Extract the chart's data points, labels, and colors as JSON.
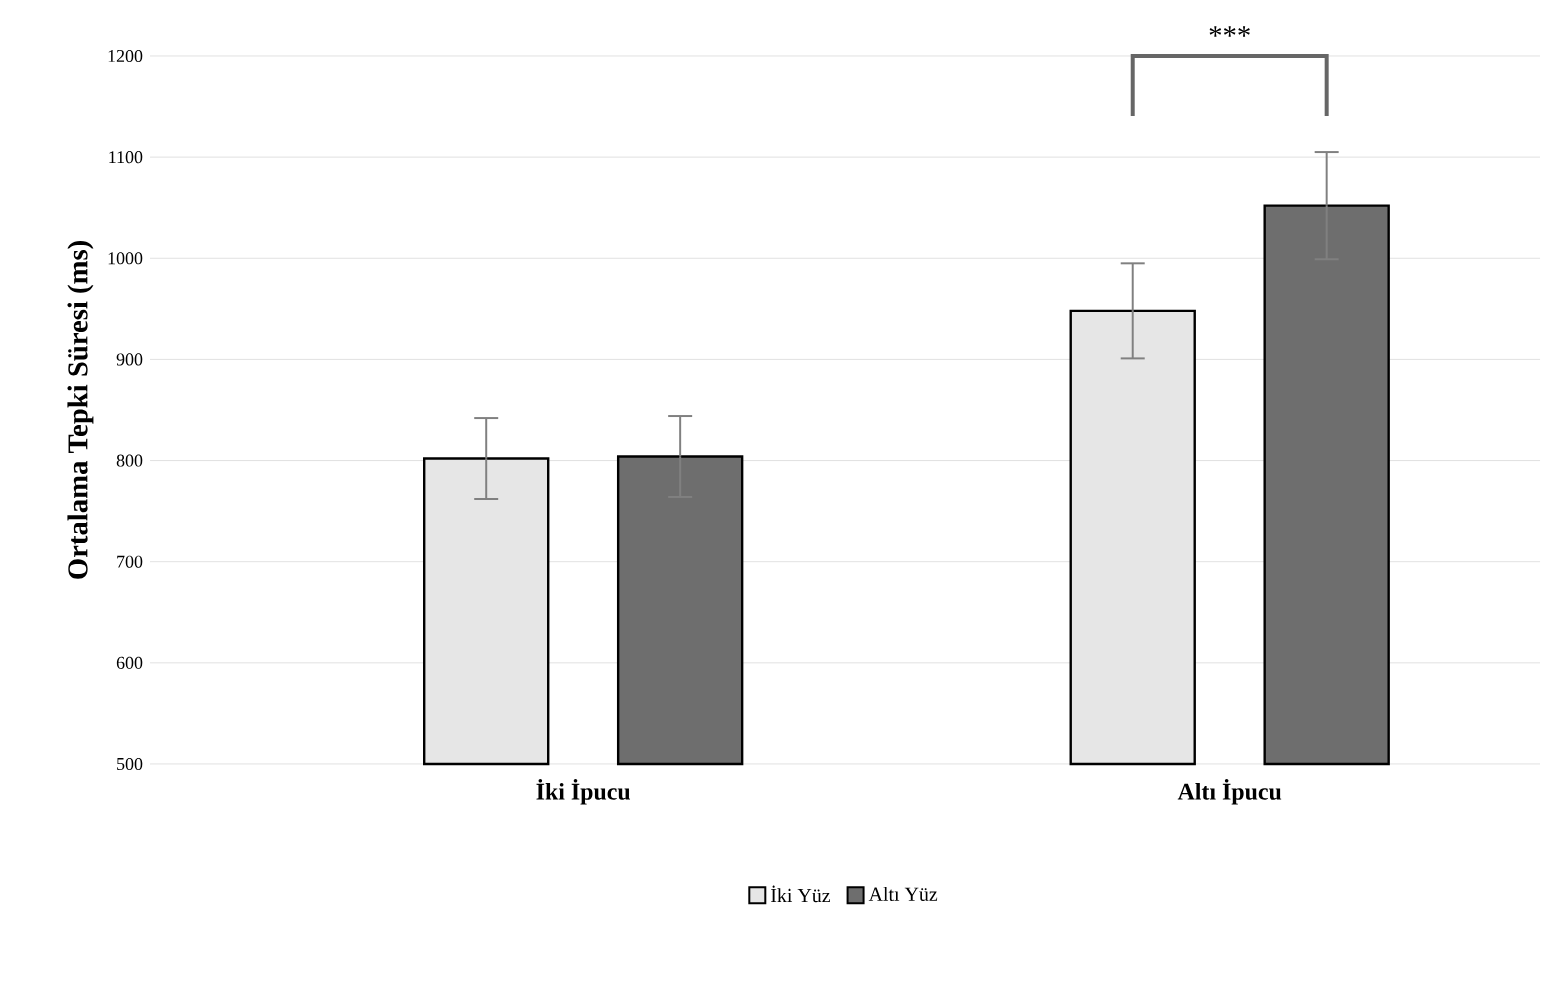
{
  "chart_data": {
    "type": "bar",
    "ylabel": "Ortalama Tepki Süresi (ms)",
    "categories": [
      "**İki İpucu**",
      "**Altı İpucu**"
    ],
    "series": [
      {
        "name": "İki Yüz",
        "color": "#e6e6e6",
        "values": [
          802,
          948
        ],
        "errors": [
          40,
          47
        ]
      },
      {
        "name": "Altı Yüz",
        "color": "#6e6e6e",
        "values": [
          804,
          1052
        ],
        "errors": [
          40,
          53
        ]
      }
    ],
    "ylim": [
      500,
      1200
    ],
    "yticks": [
      500,
      600,
      700,
      800,
      900,
      1000,
      1100,
      1200
    ],
    "grid": "y",
    "legend": "bottom",
    "annotations": [
      "***"
    ]
  }
}
